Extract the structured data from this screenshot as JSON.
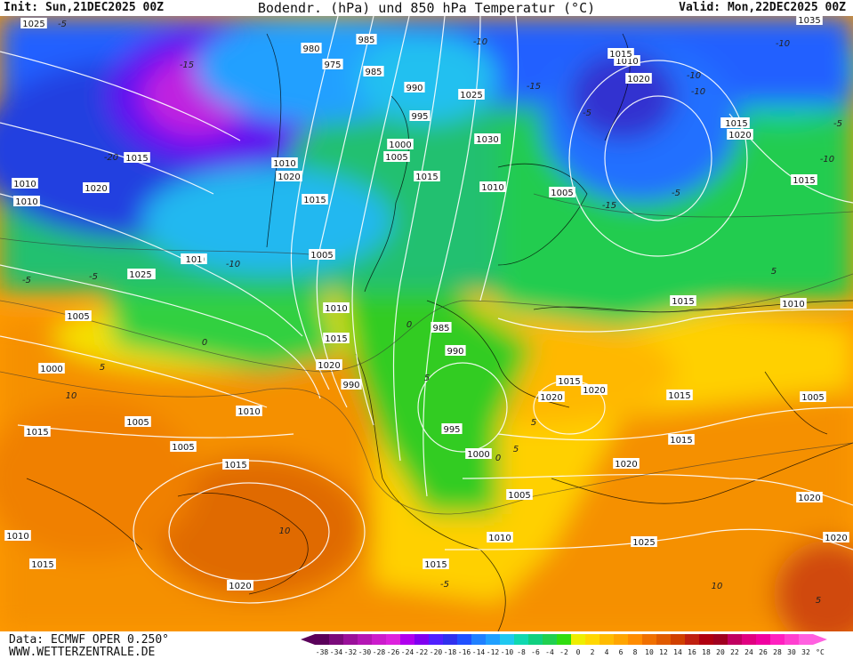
{
  "header": {
    "init": "Init: Sun,21DEC2025 00Z",
    "title": "Bodendr. (hPa) und 850 hPa Temperatur (°C)",
    "valid": "Valid: Mon,22DEC2025 00Z"
  },
  "footer": {
    "data_source": "Data: ECMWF OPER 0.250°",
    "website": "WWW.WETTERZENTRALE.DE"
  },
  "legend": {
    "unit": "°C",
    "ticks": [
      "-38",
      "-34",
      "-32",
      "-30",
      "-28",
      "-26",
      "-24",
      "-22",
      "-20",
      "-18",
      "-16",
      "-14",
      "-12",
      "-10",
      "-8",
      "-6",
      "-4",
      "-2",
      "0",
      "2",
      "4",
      "6",
      "8",
      "10",
      "12",
      "14",
      "16",
      "18",
      "20",
      "22",
      "24",
      "26",
      "28",
      "30",
      "32"
    ],
    "colors": [
      "#5a005a",
      "#7a0a7a",
      "#9a109a",
      "#b416b4",
      "#cc1ccc",
      "#dd22dd",
      "#b000ee",
      "#8000f0",
      "#5020ff",
      "#3030ee",
      "#2050ff",
      "#2080ff",
      "#20a0ff",
      "#20c8f0",
      "#10d8b0",
      "#10d080",
      "#20d050",
      "#30dd10",
      "#eeee00",
      "#ffd700",
      "#ffbb00",
      "#ffa500",
      "#ff8c00",
      "#f07000",
      "#e05a00",
      "#d04000",
      "#c02010",
      "#b00010",
      "#a00020",
      "#c00060",
      "#e00080",
      "#f000a0",
      "#ff20c0",
      "#ff40d0",
      "#ff60e0"
    ]
  },
  "map": {
    "isobar_labels": [
      "1025",
      "1035",
      "980",
      "985",
      "975",
      "985",
      "990",
      "995",
      "1000",
      "1005",
      "1010",
      "1015",
      "1020",
      "1025",
      "1030",
      "1015",
      "1010",
      "1005",
      "1010",
      "1020",
      "1015",
      "1005",
      "1010",
      "1015",
      "1020",
      "990",
      "985",
      "990",
      "995",
      "1000",
      "1005",
      "1010",
      "1015",
      "1020",
      "1025",
      "1020",
      "1010",
      "1015",
      "1020",
      "1015",
      "1010",
      "1005",
      "1000",
      "1005",
      "1005",
      "1010",
      "1015",
      "1020",
      "1020",
      "1015",
      "1015",
      "1020",
      "1025",
      "1020",
      "1020",
      "1025",
      "1020",
      "1015",
      "1015",
      "1010",
      "1005",
      "1010",
      "1015",
      "1010",
      "1015",
      "1020",
      "1015",
      "1010",
      "1015",
      "101",
      "1025",
      "1020"
    ],
    "temp_labels": [
      "-5",
      "-10",
      "-15",
      "-20",
      "-5",
      "-15",
      "-10",
      "-5",
      "0",
      "5",
      "10",
      "-5",
      "-10",
      "0",
      "5",
      "10",
      "-5",
      "-10",
      "-15",
      "-10",
      "-5",
      "-10",
      "5",
      "5",
      "0",
      "5",
      "-5",
      "10",
      "5"
    ]
  }
}
